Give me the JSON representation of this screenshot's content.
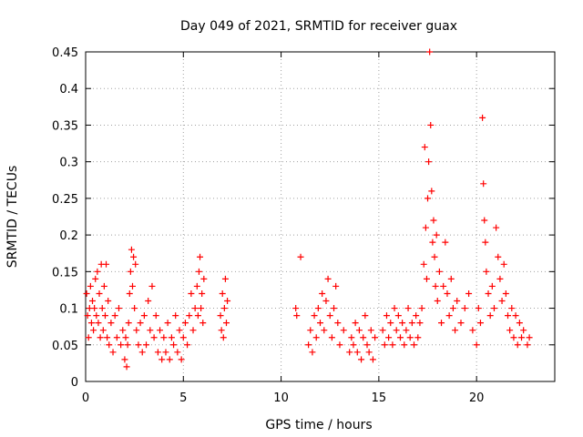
{
  "chart_data": {
    "type": "scatter",
    "title": "Day 049 of 2021, SRMTID for receiver guax",
    "xlabel": "GPS time / hours",
    "ylabel": "SRMTID / TECUs",
    "xlim": [
      0,
      24
    ],
    "ylim": [
      0,
      0.45
    ],
    "xticks": [
      0,
      5,
      10,
      15,
      20
    ],
    "yticks": [
      0,
      0.05,
      0.1,
      0.15,
      0.2,
      0.25,
      0.3,
      0.35,
      0.4,
      0.45
    ],
    "xtick_labels": [
      "0",
      "5",
      "10",
      "15",
      "20"
    ],
    "ytick_labels": [
      "0",
      "0.05",
      "0.1",
      "0.15",
      "0.2",
      "0.25",
      "0.3",
      "0.35",
      "0.4",
      "0.45"
    ],
    "grid": true,
    "marker_color": "#ff0000",
    "series": [
      {
        "name": "SRMTID",
        "points": [
          [
            0.05,
            0.12
          ],
          [
            0.1,
            0.09
          ],
          [
            0.15,
            0.06
          ],
          [
            0.2,
            0.1
          ],
          [
            0.25,
            0.13
          ],
          [
            0.3,
            0.08
          ],
          [
            0.35,
            0.11
          ],
          [
            0.4,
            0.07
          ],
          [
            0.45,
            0.1
          ],
          [
            0.5,
            0.14
          ],
          [
            0.55,
            0.09
          ],
          [
            0.6,
            0.15
          ],
          [
            0.65,
            0.08
          ],
          [
            0.7,
            0.12
          ],
          [
            0.75,
            0.06
          ],
          [
            0.8,
            0.16
          ],
          [
            0.85,
            0.1
          ],
          [
            0.9,
            0.07
          ],
          [
            0.95,
            0.13
          ],
          [
            1.0,
            0.09
          ],
          [
            1.05,
            0.16
          ],
          [
            1.1,
            0.06
          ],
          [
            1.15,
            0.11
          ],
          [
            1.2,
            0.05
          ],
          [
            1.3,
            0.08
          ],
          [
            1.4,
            0.04
          ],
          [
            1.5,
            0.09
          ],
          [
            1.6,
            0.06
          ],
          [
            1.7,
            0.1
          ],
          [
            1.8,
            0.05
          ],
          [
            1.9,
            0.07
          ],
          [
            2.0,
            0.03
          ],
          [
            2.05,
            0.06
          ],
          [
            2.1,
            0.02
          ],
          [
            2.15,
            0.05
          ],
          [
            2.2,
            0.08
          ],
          [
            2.25,
            0.12
          ],
          [
            2.3,
            0.15
          ],
          [
            2.35,
            0.18
          ],
          [
            2.4,
            0.13
          ],
          [
            2.45,
            0.17
          ],
          [
            2.5,
            0.1
          ],
          [
            2.55,
            0.16
          ],
          [
            2.6,
            0.07
          ],
          [
            2.7,
            0.05
          ],
          [
            2.8,
            0.08
          ],
          [
            2.9,
            0.04
          ],
          [
            3.0,
            0.09
          ],
          [
            3.1,
            0.05
          ],
          [
            3.2,
            0.11
          ],
          [
            3.3,
            0.07
          ],
          [
            3.4,
            0.13
          ],
          [
            3.5,
            0.06
          ],
          [
            3.6,
            0.09
          ],
          [
            3.7,
            0.04
          ],
          [
            3.8,
            0.07
          ],
          [
            3.9,
            0.03
          ],
          [
            4.0,
            0.06
          ],
          [
            4.1,
            0.04
          ],
          [
            4.2,
            0.08
          ],
          [
            4.3,
            0.03
          ],
          [
            4.4,
            0.06
          ],
          [
            4.5,
            0.05
          ],
          [
            4.6,
            0.09
          ],
          [
            4.7,
            0.04
          ],
          [
            4.8,
            0.07
          ],
          [
            4.9,
            0.03
          ],
          [
            5.0,
            0.06
          ],
          [
            5.1,
            0.08
          ],
          [
            5.2,
            0.05
          ],
          [
            5.3,
            0.09
          ],
          [
            5.4,
            0.12
          ],
          [
            5.5,
            0.07
          ],
          [
            5.6,
            0.1
          ],
          [
            5.7,
            0.13
          ],
          [
            5.75,
            0.09
          ],
          [
            5.8,
            0.15
          ],
          [
            5.85,
            0.17
          ],
          [
            5.9,
            0.1
          ],
          [
            5.95,
            0.12
          ],
          [
            6.0,
            0.08
          ],
          [
            6.05,
            0.14
          ],
          [
            6.9,
            0.09
          ],
          [
            6.95,
            0.07
          ],
          [
            7.0,
            0.12
          ],
          [
            7.05,
            0.06
          ],
          [
            7.1,
            0.1
          ],
          [
            7.15,
            0.14
          ],
          [
            7.2,
            0.08
          ],
          [
            7.25,
            0.11
          ],
          [
            10.75,
            0.1
          ],
          [
            10.8,
            0.09
          ],
          [
            11.0,
            0.17
          ],
          [
            11.4,
            0.05
          ],
          [
            11.5,
            0.07
          ],
          [
            11.6,
            0.04
          ],
          [
            11.7,
            0.09
          ],
          [
            11.8,
            0.06
          ],
          [
            11.9,
            0.1
          ],
          [
            12.0,
            0.08
          ],
          [
            12.1,
            0.12
          ],
          [
            12.2,
            0.07
          ],
          [
            12.3,
            0.11
          ],
          [
            12.4,
            0.14
          ],
          [
            12.5,
            0.09
          ],
          [
            12.6,
            0.06
          ],
          [
            12.7,
            0.1
          ],
          [
            12.8,
            0.13
          ],
          [
            12.9,
            0.08
          ],
          [
            13.0,
            0.05
          ],
          [
            13.2,
            0.07
          ],
          [
            13.5,
            0.04
          ],
          [
            13.6,
            0.06
          ],
          [
            13.7,
            0.05
          ],
          [
            13.8,
            0.08
          ],
          [
            13.9,
            0.04
          ],
          [
            14.0,
            0.07
          ],
          [
            14.1,
            0.03
          ],
          [
            14.2,
            0.06
          ],
          [
            14.3,
            0.09
          ],
          [
            14.4,
            0.05
          ],
          [
            14.5,
            0.04
          ],
          [
            14.6,
            0.07
          ],
          [
            14.7,
            0.03
          ],
          [
            14.8,
            0.06
          ],
          [
            15.2,
            0.07
          ],
          [
            15.3,
            0.05
          ],
          [
            15.4,
            0.09
          ],
          [
            15.5,
            0.06
          ],
          [
            15.6,
            0.08
          ],
          [
            15.7,
            0.05
          ],
          [
            15.8,
            0.1
          ],
          [
            15.9,
            0.07
          ],
          [
            16.0,
            0.09
          ],
          [
            16.1,
            0.06
          ],
          [
            16.2,
            0.08
          ],
          [
            16.3,
            0.05
          ],
          [
            16.4,
            0.07
          ],
          [
            16.5,
            0.1
          ],
          [
            16.6,
            0.06
          ],
          [
            16.7,
            0.08
          ],
          [
            16.8,
            0.05
          ],
          [
            16.9,
            0.09
          ],
          [
            17.0,
            0.06
          ],
          [
            17.1,
            0.08
          ],
          [
            17.2,
            0.1
          ],
          [
            17.3,
            0.16
          ],
          [
            17.35,
            0.32
          ],
          [
            17.4,
            0.21
          ],
          [
            17.45,
            0.14
          ],
          [
            17.5,
            0.25
          ],
          [
            17.55,
            0.3
          ],
          [
            17.6,
            0.45
          ],
          [
            17.65,
            0.35
          ],
          [
            17.7,
            0.26
          ],
          [
            17.75,
            0.19
          ],
          [
            17.8,
            0.22
          ],
          [
            17.85,
            0.17
          ],
          [
            17.9,
            0.13
          ],
          [
            17.95,
            0.2
          ],
          [
            18.0,
            0.11
          ],
          [
            18.1,
            0.15
          ],
          [
            18.2,
            0.08
          ],
          [
            18.3,
            0.13
          ],
          [
            18.4,
            0.19
          ],
          [
            18.5,
            0.12
          ],
          [
            18.6,
            0.09
          ],
          [
            18.7,
            0.14
          ],
          [
            18.8,
            0.1
          ],
          [
            18.9,
            0.07
          ],
          [
            19.0,
            0.11
          ],
          [
            19.2,
            0.08
          ],
          [
            19.4,
            0.1
          ],
          [
            19.6,
            0.12
          ],
          [
            19.8,
            0.07
          ],
          [
            20.0,
            0.05
          ],
          [
            20.1,
            0.1
          ],
          [
            20.2,
            0.08
          ],
          [
            20.3,
            0.36
          ],
          [
            20.35,
            0.27
          ],
          [
            20.4,
            0.22
          ],
          [
            20.45,
            0.19
          ],
          [
            20.5,
            0.15
          ],
          [
            20.6,
            0.12
          ],
          [
            20.7,
            0.09
          ],
          [
            20.8,
            0.13
          ],
          [
            20.9,
            0.1
          ],
          [
            21.0,
            0.21
          ],
          [
            21.1,
            0.17
          ],
          [
            21.2,
            0.14
          ],
          [
            21.3,
            0.11
          ],
          [
            21.4,
            0.16
          ],
          [
            21.5,
            0.12
          ],
          [
            21.6,
            0.09
          ],
          [
            21.7,
            0.07
          ],
          [
            21.8,
            0.1
          ],
          [
            21.9,
            0.06
          ],
          [
            22.0,
            0.09
          ],
          [
            22.1,
            0.05
          ],
          [
            22.2,
            0.08
          ],
          [
            22.3,
            0.06
          ],
          [
            22.4,
            0.07
          ],
          [
            22.6,
            0.05
          ],
          [
            22.7,
            0.06
          ]
        ]
      }
    ]
  }
}
